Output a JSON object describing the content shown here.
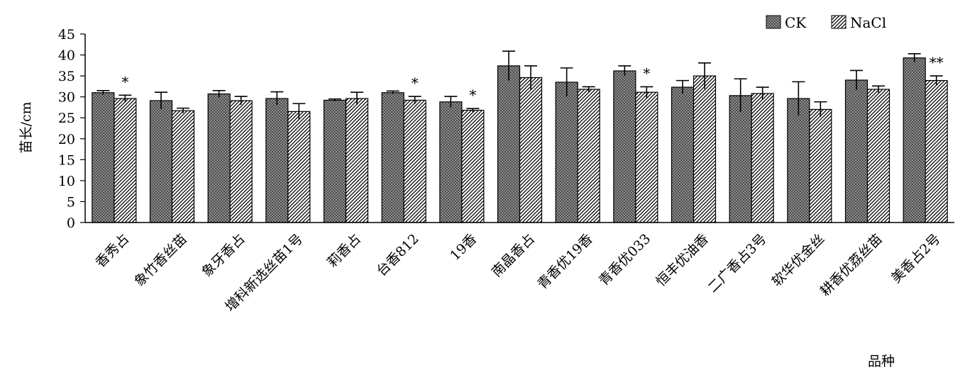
{
  "chart_data": {
    "type": "bar",
    "ylabel": "苗长/cm",
    "xlabel": "品种",
    "ylim": [
      0,
      45
    ],
    "yticks": [
      "0",
      "5",
      "10",
      "15",
      "20",
      "25",
      "30",
      "35",
      "40",
      "45"
    ],
    "legend_position": "top-right",
    "categories": [
      "香秀占",
      "象竹香丝苗",
      "象牙香占",
      "增科新选丝苗1号",
      "莉香占",
      "台香812",
      "19香",
      "南晶香占",
      "青香优19香",
      "青香优033",
      "恒丰优油香",
      "二广香占3号",
      "软华优金丝",
      "耕香优荔丝苗",
      "美香占2号"
    ],
    "series": [
      {
        "name": "CK",
        "pattern": "crosshatch-dark",
        "values": [
          31.0,
          29.1,
          30.7,
          29.6,
          29.2,
          31.0,
          28.8,
          37.4,
          33.5,
          36.2,
          32.3,
          30.3,
          29.6,
          34.0,
          39.3
        ],
        "errors": [
          0.5,
          2.0,
          0.8,
          1.6,
          0.3,
          0.4,
          1.3,
          3.5,
          3.4,
          1.2,
          1.6,
          4.0,
          4.0,
          2.3,
          1.0
        ]
      },
      {
        "name": "NaCl",
        "pattern": "diagonal-hatch",
        "values": [
          29.6,
          26.7,
          29.1,
          26.5,
          29.6,
          29.2,
          26.8,
          34.6,
          31.8,
          31.1,
          35.0,
          30.8,
          27.0,
          31.8,
          33.9
        ],
        "errors": [
          0.8,
          0.6,
          1.0,
          1.9,
          1.5,
          0.9,
          0.4,
          2.8,
          0.6,
          1.3,
          3.1,
          1.5,
          1.8,
          0.8,
          1.1
        ]
      }
    ],
    "significance": [
      "*",
      "",
      "",
      "",
      "",
      "*",
      "*",
      "",
      "",
      "*",
      "",
      "",
      "",
      "",
      "**"
    ]
  }
}
